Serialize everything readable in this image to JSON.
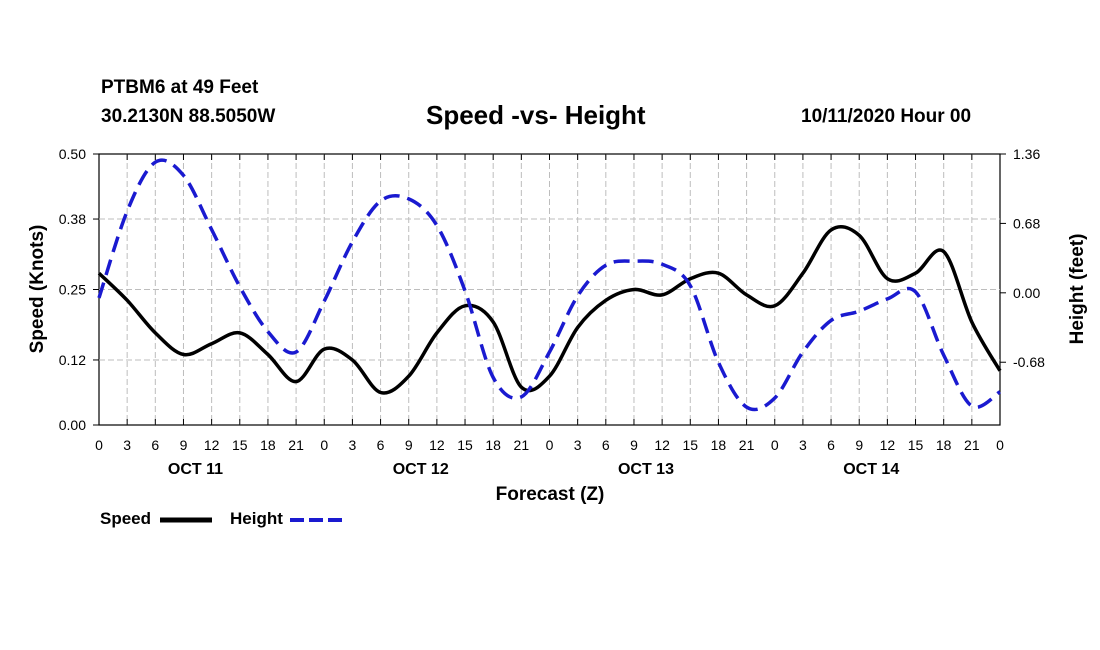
{
  "header": {
    "station": "PTBM6 at 49 Feet",
    "coords": "30.2130N 88.5050W",
    "title": "Speed -vs- Height",
    "stamp": "10/11/2020 Hour 00"
  },
  "legend": {
    "speed": "Speed",
    "height": "Height"
  },
  "colors": {
    "speed": "#000000",
    "height": "#1a1ad0",
    "grid": "#bdbdbd"
  },
  "chart_data": {
    "type": "line",
    "xlabel": "Forecast (Z)",
    "ylabel": "Speed (Knots)",
    "y2label": "Height (feet)",
    "xlim": [
      0,
      96
    ],
    "ylim": [
      0.0,
      0.5
    ],
    "y2lim": [
      -1.295,
      1.36
    ],
    "yticks": [
      "0.00",
      "0.12",
      "0.25",
      "0.38",
      "0.50"
    ],
    "y2ticks": [
      "-0.68",
      "0.00",
      "0.68",
      "1.36"
    ],
    "xtick_labels": [
      "0",
      "3",
      "6",
      "9",
      "12",
      "15",
      "18",
      "21",
      "0",
      "3",
      "6",
      "9",
      "12",
      "15",
      "18",
      "21",
      "0",
      "3",
      "6",
      "9",
      "12",
      "15",
      "18",
      "21",
      "0",
      "3",
      "6",
      "9",
      "12",
      "15",
      "18",
      "21",
      "0"
    ],
    "day_labels": [
      "OCT 11",
      "OCT 12",
      "OCT 13",
      "OCT 14"
    ],
    "grid": true,
    "series": [
      {
        "name": "Speed",
        "axis": "left",
        "style": "solid",
        "x": [
          0,
          3,
          6,
          9,
          12,
          15,
          18,
          21,
          24,
          27,
          30,
          33,
          36,
          39,
          42,
          45,
          48,
          51,
          54,
          57,
          60,
          63,
          66,
          69,
          72,
          75,
          78,
          81,
          84,
          87,
          90,
          93,
          96
        ],
        "values": [
          0.28,
          0.23,
          0.17,
          0.13,
          0.15,
          0.17,
          0.13,
          0.08,
          0.14,
          0.12,
          0.06,
          0.09,
          0.17,
          0.22,
          0.19,
          0.07,
          0.09,
          0.18,
          0.23,
          0.25,
          0.24,
          0.27,
          0.28,
          0.24,
          0.22,
          0.28,
          0.36,
          0.35,
          0.27,
          0.28,
          0.32,
          0.19,
          0.1
        ]
      },
      {
        "name": "Height",
        "axis": "right",
        "style": "dashed",
        "x": [
          0,
          3,
          6,
          9,
          12,
          15,
          18,
          21,
          24,
          27,
          30,
          33,
          36,
          39,
          42,
          45,
          48,
          51,
          54,
          57,
          60,
          63,
          66,
          69,
          72,
          75,
          78,
          81,
          84,
          87,
          90,
          93,
          96
        ],
        "values": [
          -0.05,
          0.8,
          1.28,
          1.15,
          0.62,
          0.06,
          -0.38,
          -0.58,
          -0.08,
          0.5,
          0.9,
          0.92,
          0.66,
          0.02,
          -0.83,
          -1.02,
          -0.58,
          -0.03,
          0.27,
          0.31,
          0.28,
          0.07,
          -0.68,
          -1.12,
          -1.03,
          -0.58,
          -0.27,
          -0.18,
          -0.06,
          0.01,
          -0.61,
          -1.11,
          -0.97
        ]
      }
    ]
  }
}
